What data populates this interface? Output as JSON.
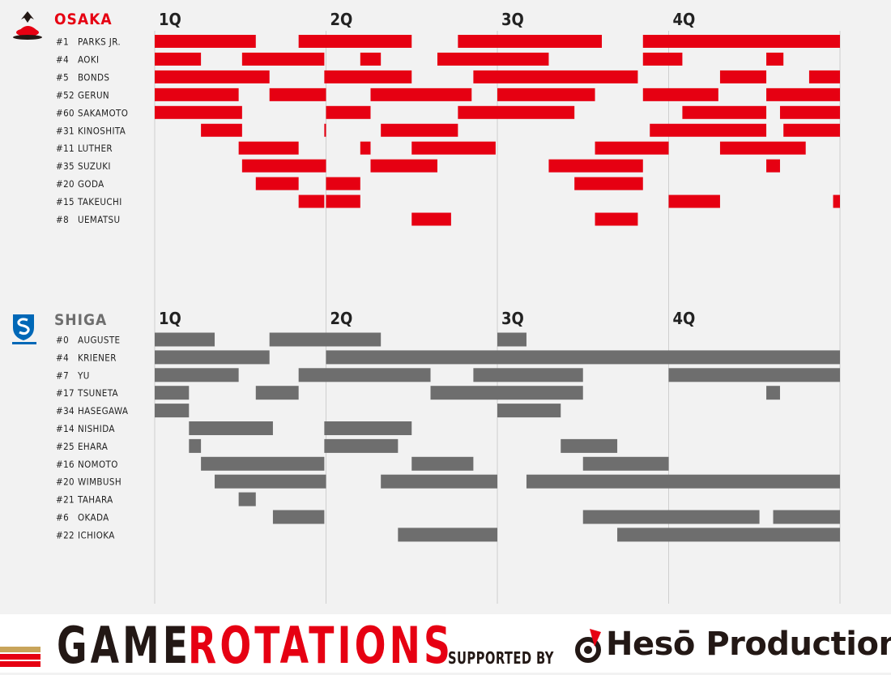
{
  "chart_data": {
    "type": "gantt",
    "x_unit": "game minutes",
    "xlim": [
      0,
      40
    ],
    "quarters": [
      {
        "label": "1Q",
        "start": 0
      },
      {
        "label": "2Q",
        "start": 10
      },
      {
        "label": "3Q",
        "start": 20
      },
      {
        "label": "4Q",
        "start": 30
      }
    ],
    "teams": [
      {
        "name": "OSAKA",
        "color": "#e60012",
        "players": [
          {
            "label": "#1  PARKS JR.",
            "stints": [
              [
                0,
                5.9
              ],
              [
                8.4,
                15.0
              ],
              [
                17.7,
                26.1
              ],
              [
                28.5,
                40.0
              ]
            ]
          },
          {
            "label": "#4  AOKI",
            "stints": [
              [
                0,
                2.7
              ],
              [
                5.1,
                9.9
              ],
              [
                12.0,
                13.2
              ],
              [
                16.5,
                23.0
              ],
              [
                28.5,
                30.8
              ],
              [
                35.7,
                36.7
              ]
            ]
          },
          {
            "label": "#5  BONDS",
            "stints": [
              [
                0,
                6.7
              ],
              [
                9.9,
                15.0
              ],
              [
                18.6,
                28.2
              ],
              [
                33.0,
                35.7
              ],
              [
                38.2,
                40.0
              ]
            ]
          },
          {
            "label": "#52 GERUN",
            "stints": [
              [
                0,
                4.9
              ],
              [
                6.7,
                10.0
              ],
              [
                12.6,
                18.5
              ],
              [
                20.0,
                25.7
              ],
              [
                28.5,
                32.9
              ],
              [
                35.7,
                40.0
              ]
            ]
          },
          {
            "label": "#60 SAKAMOTO",
            "stints": [
              [
                0,
                5.1
              ],
              [
                10.0,
                12.6
              ],
              [
                17.7,
                24.5
              ],
              [
                30.8,
                35.7
              ],
              [
                36.5,
                40.0
              ]
            ]
          },
          {
            "label": "#31 KINOSHITA",
            "stints": [
              [
                2.7,
                5.1
              ],
              [
                9.9,
                10.0
              ],
              [
                13.2,
                17.7
              ],
              [
                28.9,
                35.7
              ],
              [
                36.7,
                40.0
              ]
            ]
          },
          {
            "label": "#11 LUTHER",
            "stints": [
              [
                4.9,
                8.4
              ],
              [
                12.0,
                12.6
              ],
              [
                15.0,
                19.9
              ],
              [
                25.7,
                30.0
              ],
              [
                33.0,
                38.0
              ]
            ]
          },
          {
            "label": "#35 SUZUKI",
            "stints": [
              [
                5.1,
                10.0
              ],
              [
                12.6,
                16.5
              ],
              [
                23.0,
                28.5
              ],
              [
                35.7,
                36.5
              ]
            ]
          },
          {
            "label": "#20 GODA",
            "stints": [
              [
                5.9,
                8.4
              ],
              [
                10.0,
                12.0
              ],
              [
                24.5,
                28.5
              ]
            ]
          },
          {
            "label": "#15 TAKEUCHI",
            "stints": [
              [
                8.4,
                9.9
              ],
              [
                10.0,
                12.0
              ],
              [
                30.0,
                33.0
              ],
              [
                39.6,
                40.0
              ]
            ]
          },
          {
            "label": "#8  UEMATSU",
            "stints": [
              [
                15.0,
                17.3
              ],
              [
                25.7,
                28.2
              ]
            ]
          }
        ]
      },
      {
        "name": "SHIGA",
        "color": "#6e6e6e",
        "players": [
          {
            "label": "#0  AUGUSTE",
            "stints": [
              [
                0,
                3.5
              ],
              [
                6.7,
                13.2
              ],
              [
                20.0,
                21.7
              ]
            ]
          },
          {
            "label": "#4  KRIENER",
            "stints": [
              [
                0,
                6.7
              ],
              [
                10.0,
                40.0
              ]
            ]
          },
          {
            "label": "#7  YU",
            "stints": [
              [
                0,
                4.9
              ],
              [
                8.4,
                16.1
              ],
              [
                18.6,
                25.0
              ],
              [
                30.0,
                40.0
              ]
            ]
          },
          {
            "label": "#17 TSUNETA",
            "stints": [
              [
                0,
                2.0
              ],
              [
                5.9,
                8.4
              ],
              [
                16.1,
                25.0
              ],
              [
                35.7,
                36.5
              ]
            ]
          },
          {
            "label": "#34 HASEGAWA",
            "stints": [
              [
                0,
                2.0
              ],
              [
                20.0,
                23.7
              ]
            ]
          },
          {
            "label": "#14 NISHIDA",
            "stints": [
              [
                2.0,
                6.9
              ],
              [
                9.9,
                15.0
              ]
            ]
          },
          {
            "label": "#25 EHARA",
            "stints": [
              [
                2.0,
                2.7
              ],
              [
                9.9,
                14.2
              ],
              [
                23.7,
                27.0
              ]
            ]
          },
          {
            "label": "#16 NOMOTO",
            "stints": [
              [
                2.7,
                9.9
              ],
              [
                15.0,
                18.6
              ],
              [
                25.0,
                30.0
              ]
            ]
          },
          {
            "label": "#20 WIMBUSH",
            "stints": [
              [
                3.5,
                10.0
              ],
              [
                13.2,
                20.0
              ],
              [
                21.7,
                40.0
              ]
            ]
          },
          {
            "label": "#21 TAHARA",
            "stints": [
              [
                4.9,
                5.9
              ]
            ]
          },
          {
            "label": "#6  OKADA",
            "stints": [
              [
                6.9,
                9.9
              ],
              [
                25.0,
                35.3
              ],
              [
                36.1,
                40.0
              ]
            ]
          },
          {
            "label": "#22 ICHIOKA",
            "stints": [
              [
                14.2,
                20.0
              ],
              [
                27.0,
                40.0
              ]
            ]
          }
        ]
      }
    ]
  },
  "footer": {
    "title_game": "GAME",
    "title_rotations": "ROTATIONS",
    "supported_by": "SUPPORTED BY",
    "sponsor": "Hesō Production"
  }
}
